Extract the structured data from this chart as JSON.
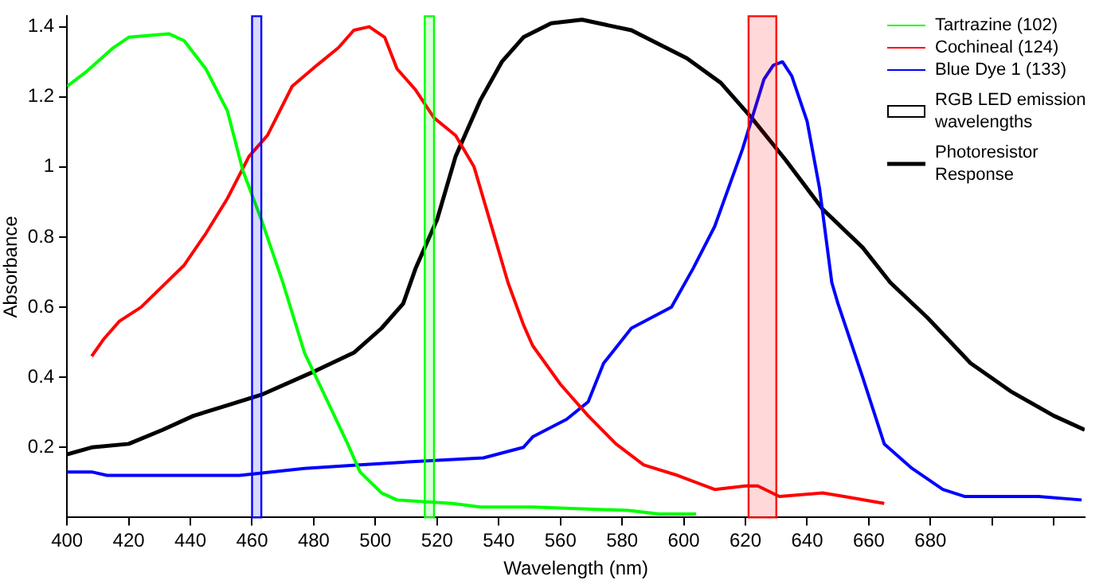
{
  "chart_data": {
    "type": "line",
    "xlabel": "Wavelength (nm)",
    "ylabel": "Absorbance",
    "xlim": [
      400,
      730
    ],
    "xticks": [
      400,
      420,
      440,
      460,
      480,
      500,
      520,
      540,
      560,
      580,
      600,
      620,
      640,
      660,
      680,
      {
        "value": 700,
        "label": null
      },
      {
        "value": 720,
        "label": null
      }
    ],
    "ylim": [
      0,
      1.43
    ],
    "yticks": [
      0.2,
      0.4,
      0.6,
      0.8,
      1,
      1.2,
      1.4
    ],
    "legend": "top right",
    "marker": "none",
    "line_style": "solid",
    "annotations": [
      "RGB LED emission wavelengths"
    ],
    "series": [
      {
        "name": "Tartrazine (102)",
        "color": "#00ff00",
        "x": [
          400,
          406,
          415,
          420,
          433,
          438,
          445,
          452,
          457,
          463,
          470,
          477,
          484,
          491,
          495,
          502,
          507,
          525,
          534,
          551,
          582,
          592,
          604
        ],
        "values": [
          1.23,
          1.27,
          1.34,
          1.37,
          1.38,
          1.36,
          1.28,
          1.16,
          0.99,
          0.85,
          0.67,
          0.47,
          0.34,
          0.21,
          0.13,
          0.07,
          0.05,
          0.04,
          0.03,
          0.03,
          0.02,
          0.01,
          0.01
        ]
      },
      {
        "name": "Cochineal (124)",
        "color": "#ff0000",
        "x": [
          408,
          412,
          417,
          424,
          431,
          438,
          445,
          452,
          459,
          465,
          473,
          481,
          488,
          493,
          498,
          503,
          507,
          513,
          519,
          526,
          532,
          537,
          543,
          548,
          551,
          560,
          569,
          578,
          587,
          598,
          610,
          620,
          624,
          631,
          645,
          652,
          665
        ],
        "values": [
          0.46,
          0.51,
          0.56,
          0.6,
          0.66,
          0.72,
          0.81,
          0.91,
          1.03,
          1.09,
          1.23,
          1.29,
          1.34,
          1.39,
          1.4,
          1.37,
          1.28,
          1.22,
          1.14,
          1.09,
          1,
          0.85,
          0.67,
          0.55,
          0.49,
          0.38,
          0.29,
          0.21,
          0.15,
          0.12,
          0.08,
          0.09,
          0.09,
          0.06,
          0.07,
          0.06,
          0.04
        ]
      },
      {
        "name": "Blue Dye 1 (133)",
        "color": "#0000ff",
        "x": [
          400,
          408,
          413,
          456,
          477,
          495,
          513,
          535,
          548,
          551,
          562,
          569,
          574,
          583,
          596,
          603,
          610,
          619,
          626,
          629,
          632,
          635,
          640,
          644,
          648,
          650,
          658,
          665,
          674,
          684,
          691,
          715,
          729
        ],
        "values": [
          0.13,
          0.13,
          0.12,
          0.12,
          0.14,
          0.15,
          0.16,
          0.17,
          0.2,
          0.23,
          0.28,
          0.33,
          0.44,
          0.54,
          0.6,
          0.71,
          0.83,
          1.05,
          1.25,
          1.29,
          1.3,
          1.26,
          1.13,
          0.94,
          0.67,
          0.61,
          0.4,
          0.21,
          0.14,
          0.08,
          0.06,
          0.06,
          0.05
        ]
      },
      {
        "name": "Photoresistor Response",
        "color": "#000000",
        "x": [
          400,
          408,
          420,
          431,
          441,
          463,
          481,
          493,
          502,
          509,
          513,
          520,
          526,
          534,
          541,
          548,
          557,
          567,
          583,
          601,
          612,
          622,
          633,
          645,
          658,
          667,
          679,
          693,
          706,
          720,
          730
        ],
        "values": [
          0.18,
          0.2,
          0.21,
          0.25,
          0.29,
          0.35,
          0.42,
          0.47,
          0.54,
          0.61,
          0.71,
          0.85,
          1.03,
          1.19,
          1.3,
          1.37,
          1.41,
          1.42,
          1.39,
          1.31,
          1.24,
          1.14,
          1.02,
          0.88,
          0.77,
          0.67,
          0.57,
          0.44,
          0.36,
          0.29,
          0.25
        ]
      }
    ],
    "bands": [
      {
        "axis": "x",
        "from": 460,
        "to": 463,
        "color": "#0000ff"
      },
      {
        "axis": "x",
        "from": 516,
        "to": 519,
        "color": "#00ff00"
      },
      {
        "axis": "x",
        "from": 621,
        "to": 630,
        "color": "#ff0000"
      }
    ]
  }
}
